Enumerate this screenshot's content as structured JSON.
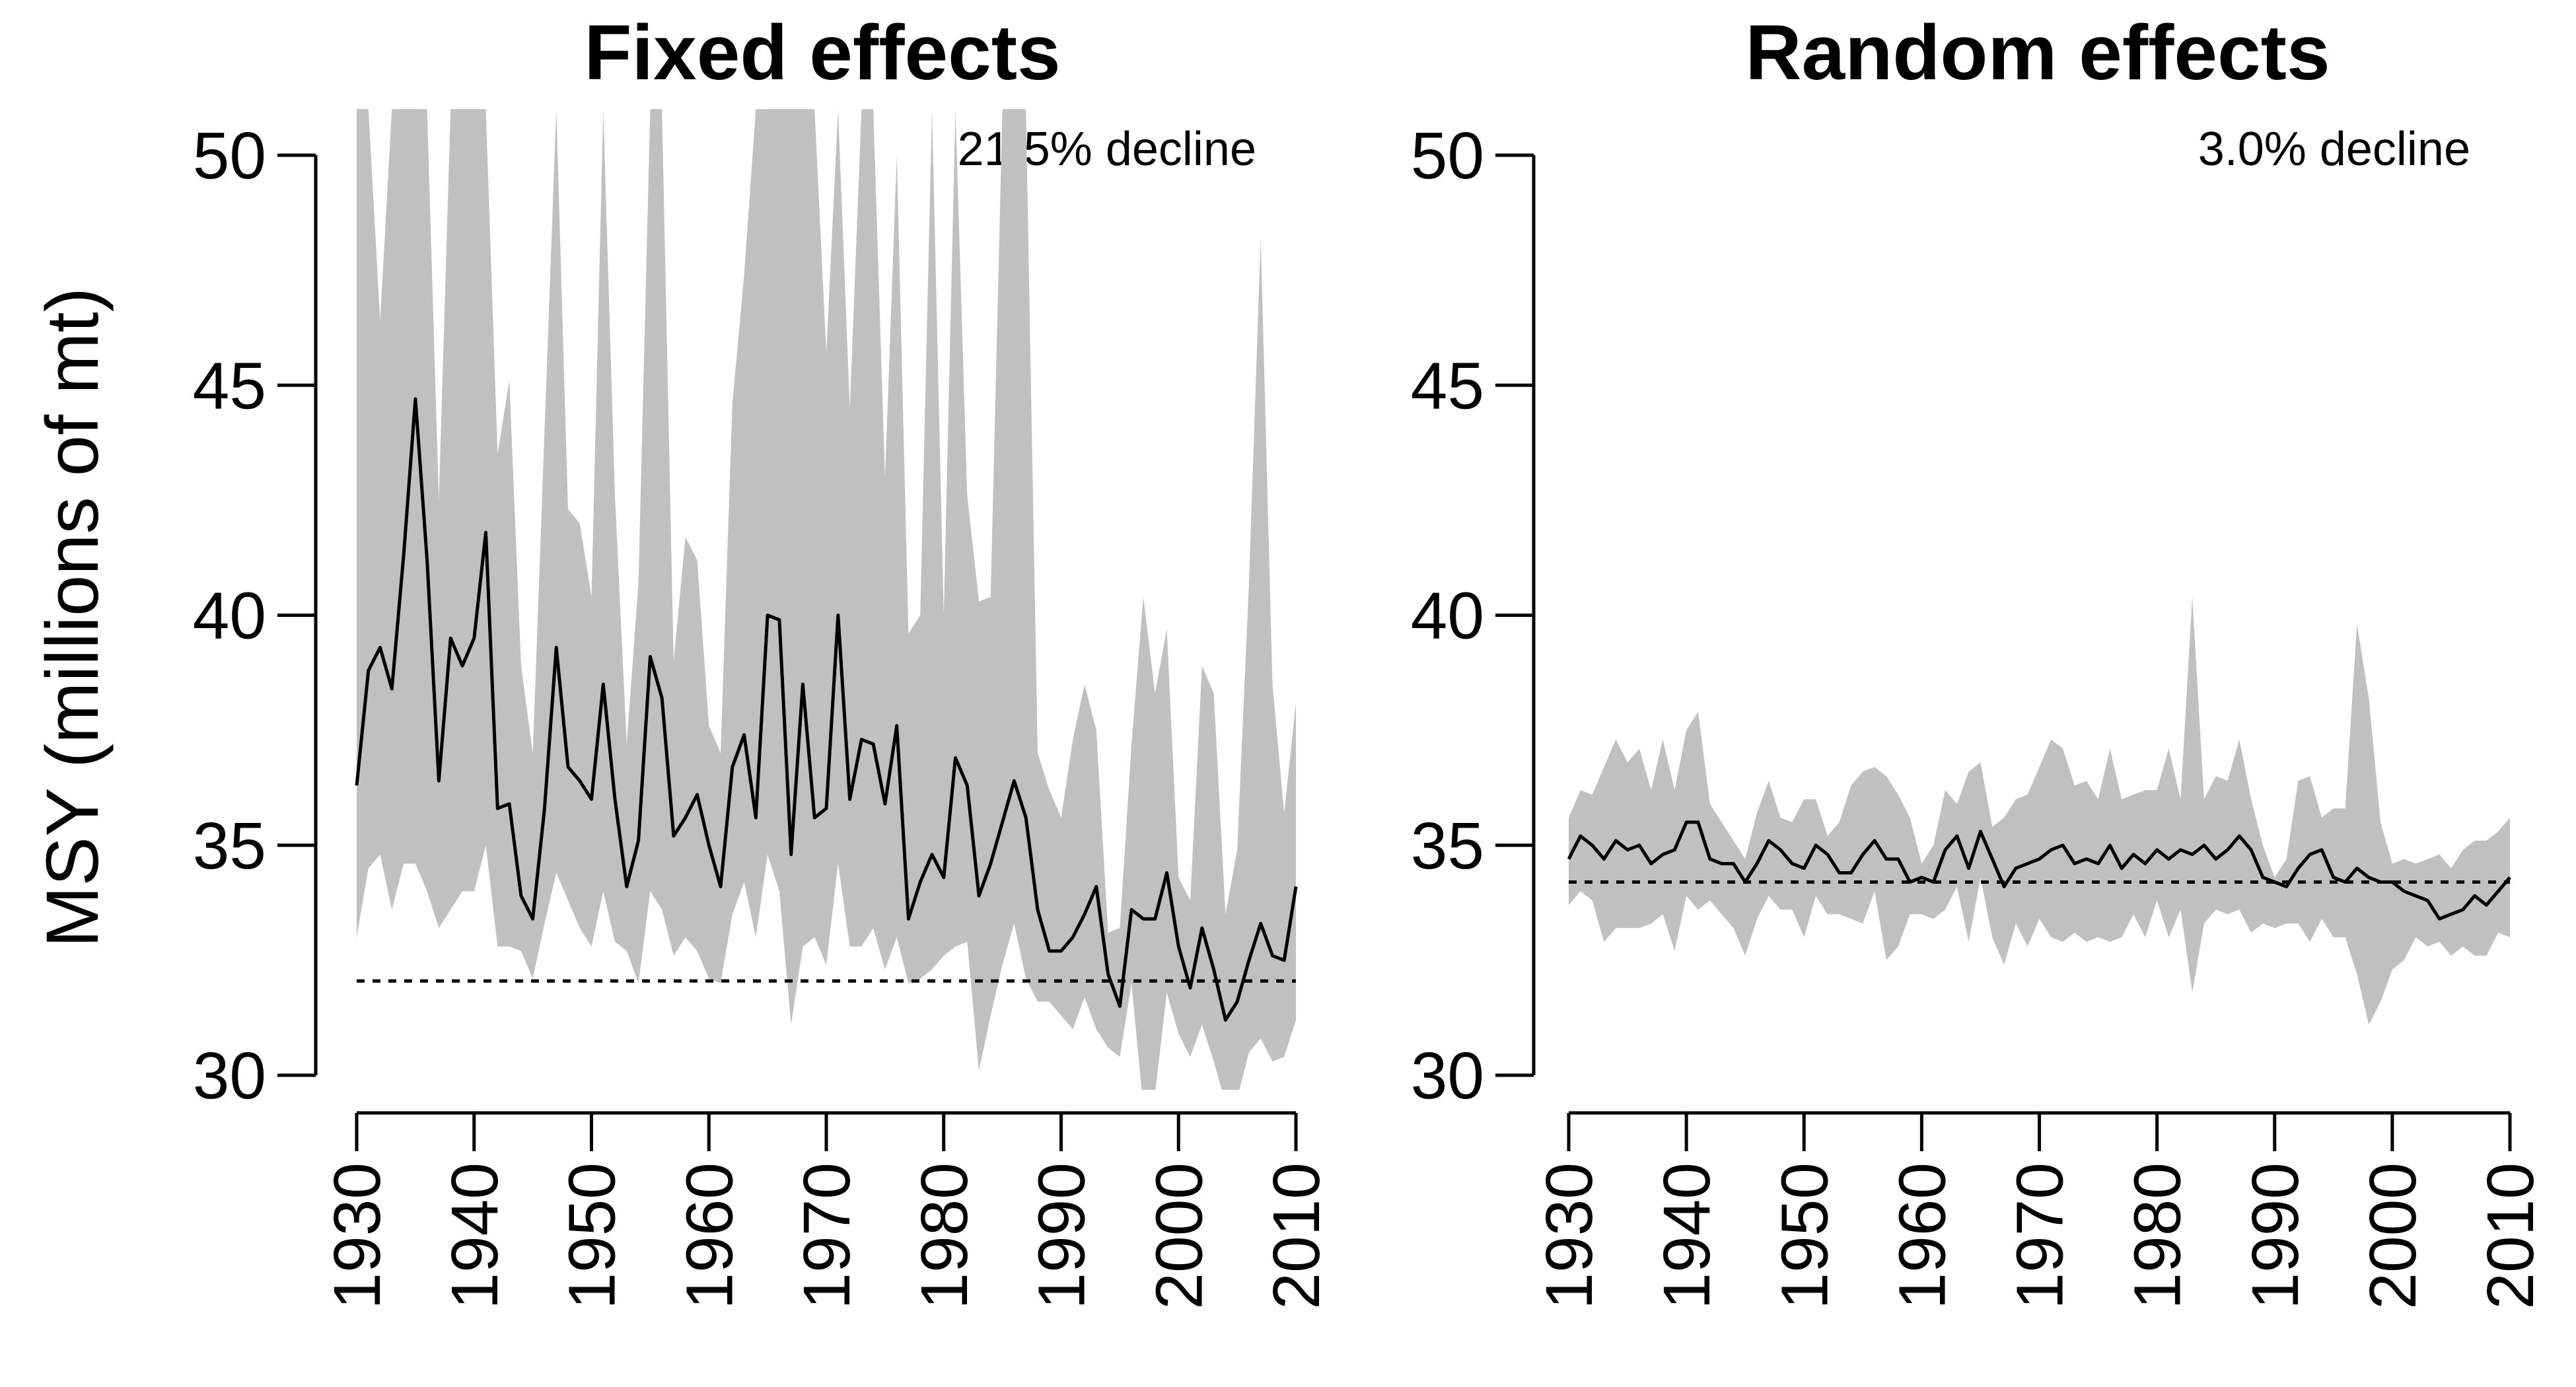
{
  "chart_data": [
    {
      "type": "line",
      "title": "Fixed effects",
      "ylabel": "MSY (millions of mt)",
      "xlabel": "",
      "ylim": [
        30,
        50
      ],
      "xlim": [
        1930,
        2010
      ],
      "yticks": [
        30,
        35,
        40,
        45,
        50
      ],
      "xticks": [
        1930,
        1940,
        1950,
        1960,
        1970,
        1980,
        1990,
        2000,
        2010
      ],
      "annotation": "21.5% decline",
      "reference_line": 32.05,
      "band_color": "#c0c0c0",
      "line_color": "#000000",
      "series": [
        {
          "x": [
            1930,
            1931,
            1932,
            1933,
            1934,
            1935,
            1936,
            1937,
            1938,
            1939,
            1940,
            1941,
            1942,
            1943,
            1944,
            1945,
            1946,
            1947,
            1948,
            1949,
            1950,
            1951,
            1952,
            1953,
            1954,
            1955,
            1956,
            1957,
            1958,
            1959,
            1960,
            1961,
            1962,
            1963,
            1964,
            1965,
            1966,
            1967,
            1968,
            1969,
            1970,
            1971,
            1972,
            1973,
            1974,
            1975,
            1976,
            1977,
            1978,
            1979,
            1980,
            1981,
            1982,
            1983,
            1984,
            1985,
            1986,
            1987,
            1988,
            1989,
            1990,
            1991,
            1992,
            1993,
            1994,
            1995,
            1996,
            1997,
            1998,
            1999,
            2000,
            2001,
            2002,
            2003,
            2004,
            2005,
            2006,
            2007,
            2008,
            2009,
            2010
          ],
          "values": [
            36.3,
            38.8,
            39.3,
            38.4,
            41.3,
            44.7,
            41.2,
            36.4,
            39.5,
            38.9,
            39.5,
            41.8,
            35.8,
            35.9,
            33.9,
            33.4,
            35.8,
            39.3,
            36.7,
            36.4,
            36.0,
            38.5,
            36.0,
            34.1,
            35.1,
            39.1,
            38.2,
            35.2,
            35.6,
            36.1,
            35.0,
            34.1,
            36.7,
            37.4,
            35.6,
            40.0,
            39.9,
            34.8,
            38.5,
            35.6,
            35.8,
            40.0,
            36.0,
            37.3,
            37.2,
            35.9,
            37.6,
            33.4,
            34.2,
            34.8,
            34.3,
            36.9,
            36.3,
            33.9,
            34.6,
            35.5,
            36.4,
            35.6,
            33.6,
            32.7,
            32.7,
            33.0,
            33.5,
            34.1,
            32.2,
            31.5,
            33.6,
            33.4,
            33.4,
            34.4,
            32.8,
            31.9,
            33.2,
            32.3,
            31.2,
            31.6,
            32.5,
            33.3,
            32.6,
            32.5,
            34.1
          ],
          "lower": [
            33.0,
            34.5,
            34.8,
            33.6,
            34.6,
            34.6,
            34.0,
            33.2,
            33.6,
            34.0,
            34.0,
            35.0,
            32.8,
            32.8,
            32.7,
            32.1,
            33.3,
            34.4,
            33.8,
            33.2,
            32.8,
            34.0,
            32.9,
            32.7,
            32.0,
            34.0,
            33.6,
            32.6,
            33.0,
            32.7,
            32.1,
            32.0,
            33.5,
            34.2,
            33.0,
            34.8,
            34.0,
            31.1,
            32.8,
            33.0,
            32.4,
            34.6,
            32.8,
            32.8,
            33.2,
            32.3,
            33.0,
            32.0,
            32.1,
            32.3,
            32.6,
            32.8,
            32.9,
            30.1,
            31.3,
            32.4,
            33.3,
            32.1,
            31.6,
            31.6,
            31.3,
            31.0,
            31.7,
            31.0,
            30.6,
            30.4,
            32.0,
            29.3,
            29.6,
            31.8,
            30.9,
            30.4,
            31.1,
            30.3,
            29.4,
            29.5,
            30.5,
            30.8,
            30.3,
            30.4,
            31.2
          ],
          "upper": [
            51.0,
            51.0,
            46.4,
            51.0,
            51.0,
            51.0,
            51.0,
            42.5,
            51.0,
            51.0,
            51.0,
            51.0,
            43.5,
            45.1,
            38.9,
            37.0,
            44.0,
            51.0,
            42.3,
            42.0,
            40.4,
            51.0,
            42.6,
            37.2,
            40.7,
            51.0,
            51.0,
            39.0,
            41.7,
            41.2,
            37.6,
            37.0,
            44.6,
            47.4,
            51.0,
            51.0,
            51.0,
            51.0,
            51.0,
            51.0,
            45.7,
            51.0,
            44.5,
            51.0,
            51.0,
            43.0,
            50.0,
            39.6,
            40.0,
            51.0,
            40.0,
            51.0,
            42.6,
            40.3,
            40.4,
            51.0,
            51.0,
            51.0,
            37.0,
            36.2,
            35.6,
            37.3,
            38.5,
            37.5,
            33.1,
            33.2,
            37.2,
            40.4,
            38.3,
            39.7,
            34.3,
            33.8,
            38.9,
            38.3,
            33.5,
            34.9,
            40.7,
            48.2,
            38.5,
            35.7,
            38.1
          ]
        }
      ]
    },
    {
      "type": "line",
      "title": "Random effects",
      "ylabel": "",
      "xlabel": "",
      "ylim": [
        30,
        50
      ],
      "xlim": [
        1930,
        2010
      ],
      "yticks": [
        30,
        35,
        40,
        45,
        50
      ],
      "xticks": [
        1930,
        1940,
        1950,
        1960,
        1970,
        1980,
        1990,
        2000,
        2010
      ],
      "annotation": "3.0% decline",
      "reference_line": 34.2,
      "band_color": "#c0c0c0",
      "line_color": "#000000",
      "series": [
        {
          "x": [
            1930,
            1931,
            1932,
            1933,
            1934,
            1935,
            1936,
            1937,
            1938,
            1939,
            1940,
            1941,
            1942,
            1943,
            1944,
            1945,
            1946,
            1947,
            1948,
            1949,
            1950,
            1951,
            1952,
            1953,
            1954,
            1955,
            1956,
            1957,
            1958,
            1959,
            1960,
            1961,
            1962,
            1963,
            1964,
            1965,
            1966,
            1967,
            1968,
            1969,
            1970,
            1971,
            1972,
            1973,
            1974,
            1975,
            1976,
            1977,
            1978,
            1979,
            1980,
            1981,
            1982,
            1983,
            1984,
            1985,
            1986,
            1987,
            1988,
            1989,
            1990,
            1991,
            1992,
            1993,
            1994,
            1995,
            1996,
            1997,
            1998,
            1999,
            2000,
            2001,
            2002,
            2003,
            2004,
            2005,
            2006,
            2007,
            2008,
            2009,
            2010
          ],
          "values": [
            34.7,
            35.2,
            35.0,
            34.7,
            35.1,
            34.9,
            35.0,
            34.6,
            34.8,
            34.9,
            35.5,
            35.5,
            34.7,
            34.6,
            34.6,
            34.2,
            34.6,
            35.1,
            34.9,
            34.6,
            34.5,
            35.0,
            34.8,
            34.4,
            34.4,
            34.8,
            35.1,
            34.7,
            34.7,
            34.2,
            34.3,
            34.2,
            34.9,
            35.2,
            34.5,
            35.3,
            34.7,
            34.1,
            34.5,
            34.6,
            34.7,
            34.9,
            35.0,
            34.6,
            34.7,
            34.6,
            35.0,
            34.5,
            34.8,
            34.6,
            34.9,
            34.7,
            34.9,
            34.8,
            35.0,
            34.7,
            34.9,
            35.2,
            34.9,
            34.3,
            34.2,
            34.1,
            34.5,
            34.8,
            34.9,
            34.3,
            34.2,
            34.5,
            34.3,
            34.2,
            34.2,
            34.0,
            33.9,
            33.8,
            33.4,
            33.5,
            33.6,
            33.9,
            33.7,
            34.0,
            34.3
          ],
          "lower": [
            33.7,
            34.0,
            33.8,
            32.9,
            33.2,
            33.2,
            33.2,
            33.3,
            33.5,
            32.7,
            33.9,
            33.6,
            33.8,
            33.5,
            33.2,
            32.6,
            33.4,
            33.9,
            33.6,
            33.6,
            33.0,
            33.9,
            33.5,
            33.5,
            33.4,
            33.3,
            34.0,
            32.5,
            32.8,
            33.5,
            33.5,
            33.4,
            33.6,
            34.1,
            32.9,
            34.3,
            33.0,
            32.4,
            33.3,
            32.8,
            33.4,
            33.0,
            32.9,
            33.1,
            32.9,
            33.0,
            32.9,
            33.0,
            33.5,
            33.0,
            33.8,
            33.0,
            33.6,
            31.8,
            33.3,
            33.6,
            33.5,
            33.6,
            33.1,
            33.3,
            33.2,
            33.3,
            33.3,
            32.9,
            33.4,
            33.0,
            33.0,
            32.2,
            31.1,
            31.6,
            32.3,
            32.5,
            33.0,
            32.8,
            32.9,
            32.6,
            32.8,
            32.6,
            32.6,
            33.1,
            33.0
          ],
          "upper": [
            35.6,
            36.2,
            36.1,
            36.7,
            37.3,
            36.8,
            37.1,
            36.2,
            37.3,
            36.2,
            37.5,
            37.9,
            35.9,
            35.5,
            35.1,
            34.7,
            35.7,
            36.4,
            35.6,
            35.5,
            36.0,
            36.0,
            35.2,
            35.5,
            36.3,
            36.6,
            36.7,
            36.5,
            36.1,
            35.6,
            34.6,
            35.0,
            36.2,
            35.9,
            36.6,
            36.8,
            35.4,
            35.6,
            36.0,
            36.1,
            36.7,
            37.3,
            37.1,
            36.3,
            36.4,
            36.0,
            37.1,
            36.0,
            36.1,
            36.2,
            36.2,
            37.1,
            36.0,
            40.4,
            36.0,
            36.5,
            36.4,
            37.3,
            36.0,
            35.0,
            34.3,
            34.7,
            36.4,
            36.5,
            35.6,
            35.8,
            35.8,
            39.8,
            38.2,
            35.5,
            34.6,
            34.7,
            34.6,
            34.7,
            34.8,
            34.5,
            34.9,
            35.1,
            35.1,
            35.3,
            35.6
          ]
        }
      ]
    }
  ]
}
